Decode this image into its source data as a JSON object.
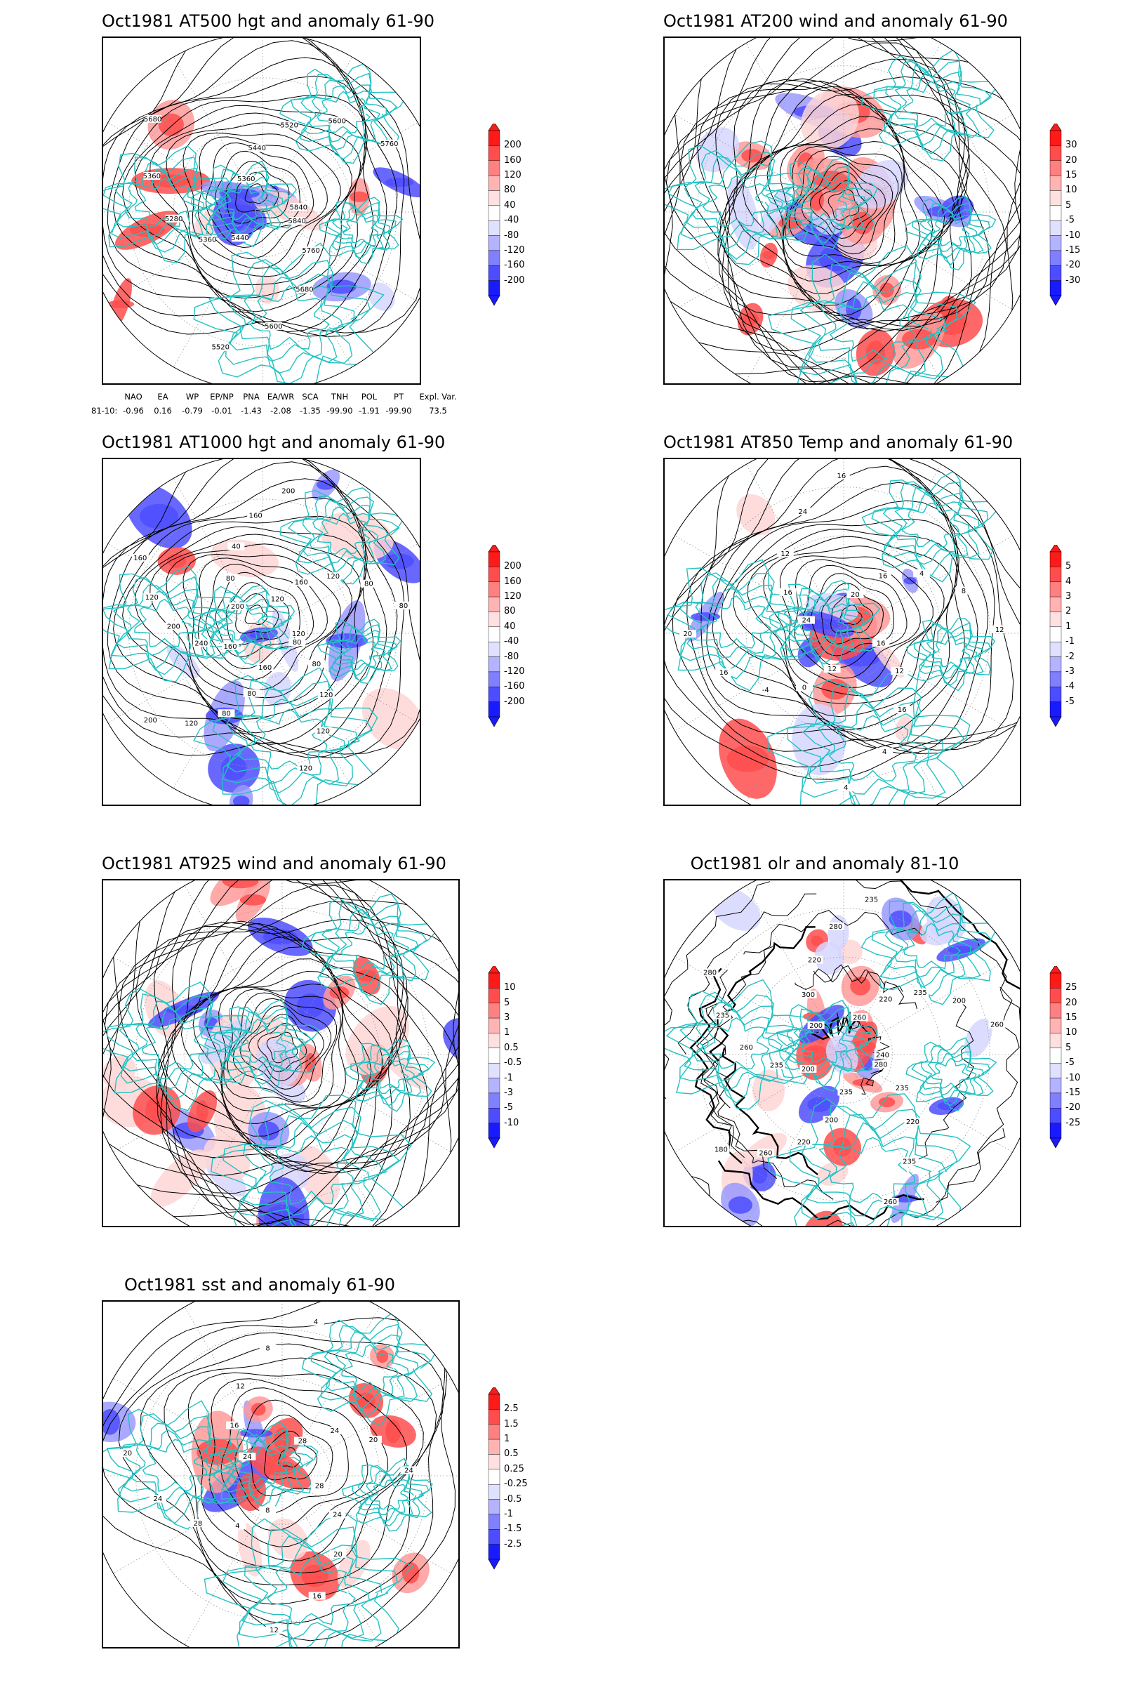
{
  "panels": [
    {
      "id": "p1",
      "title": "Oct1981 AT500 hgt and anomaly 61-90",
      "colorbar": [
        "200",
        "160",
        "120",
        "80",
        "40",
        "-40",
        "-80",
        "-120",
        "-160",
        "-200"
      ],
      "contour_labels": [
        "5840",
        "5760",
        "5680",
        "5600",
        "5520",
        "5440",
        "5360",
        "5280",
        "5360",
        "5680",
        "5360",
        "5440",
        "5520",
        "5600",
        "5760",
        "5840"
      ]
    },
    {
      "id": "p2",
      "title": "Oct1981 AT200 wind and anomaly 61-90",
      "colorbar": [
        "30",
        "20",
        "15",
        "10",
        "5",
        "-5",
        "-10",
        "-15",
        "-20",
        "-30"
      ],
      "contour_labels": []
    },
    {
      "id": "p3",
      "title": "Oct1981 AT1000 hgt and anomaly 61-90",
      "colorbar": [
        "200",
        "160",
        "120",
        "80",
        "40",
        "-40",
        "-80",
        "-120",
        "-160",
        "-200"
      ],
      "contour_labels": [
        "80",
        "80",
        "120",
        "120",
        "120",
        "160",
        "80",
        "80",
        "120",
        "200",
        "160",
        "240",
        "200",
        "120",
        "160",
        "200",
        "80",
        "40",
        "160",
        "200",
        "120",
        "160",
        "120",
        "80",
        "80",
        "120"
      ]
    },
    {
      "id": "p4",
      "title": "Oct1981 AT850 Temp and anomaly 61-90",
      "colorbar": [
        "5",
        "4",
        "3",
        "2",
        "1",
        "-1",
        "-2",
        "-3",
        "-4",
        "-5"
      ],
      "contour_labels": [
        "16",
        "12",
        "16",
        "4",
        "4",
        "12",
        "0",
        "-4",
        "16",
        "20",
        "24",
        "16",
        "12",
        "24",
        "16",
        "20",
        "16",
        "4",
        "8",
        "12"
      ]
    },
    {
      "id": "p5",
      "title": "Oct1981 AT925 wind and anomaly 61-90",
      "colorbar": [
        "10",
        "5",
        "3",
        "1",
        "0.5",
        "-0.5",
        "-1",
        "-3",
        "-5",
        "-10"
      ],
      "contour_labels": []
    },
    {
      "id": "p6",
      "title": "Oct1981 olr and anomaly 81-10",
      "colorbar": [
        "25",
        "20",
        "15",
        "10",
        "5",
        "-5",
        "-10",
        "-15",
        "-20",
        "-25"
      ],
      "contour_labels": [
        "280",
        "235",
        "220",
        "235",
        "260",
        "235",
        "200",
        "220",
        "260",
        "180",
        "200",
        "235",
        "260",
        "235",
        "280",
        "200",
        "300",
        "220",
        "280",
        "235",
        "260",
        "220",
        "235",
        "200",
        "260",
        "240"
      ]
    },
    {
      "id": "p7",
      "title": "Oct1981 sst and anomaly 61-90",
      "colorbar": [
        "2.5",
        "1.5",
        "1",
        "0.5",
        "0.25",
        "-0.25",
        "-0.5",
        "-1",
        "-1.5",
        "-2.5"
      ],
      "contour_labels": [
        "28",
        "24",
        "20",
        "16",
        "12",
        "8",
        "4",
        "28",
        "24",
        "20",
        "24",
        "16",
        "12",
        "8",
        "4",
        "28",
        "24",
        "20",
        "24"
      ]
    }
  ],
  "index_table": {
    "headers": [
      "NAO",
      "EA",
      "WP",
      "EP/NP",
      "PNA",
      "EA/WR",
      "SCA",
      "TNH",
      "POL",
      "PT",
      "Expl. Var."
    ],
    "row_label": "81-10:",
    "values": [
      "-0.96",
      "0.16",
      "-0.79",
      "-0.01",
      "-1.43",
      "-2.08",
      "-1.35",
      "-99.90",
      "-1.91",
      "-99.90",
      "73.5"
    ]
  },
  "colors": {
    "continent": "#23c1c1",
    "pos_strong": "#ff0000",
    "neg_strong": "#0000ff",
    "contour": "#000000"
  }
}
